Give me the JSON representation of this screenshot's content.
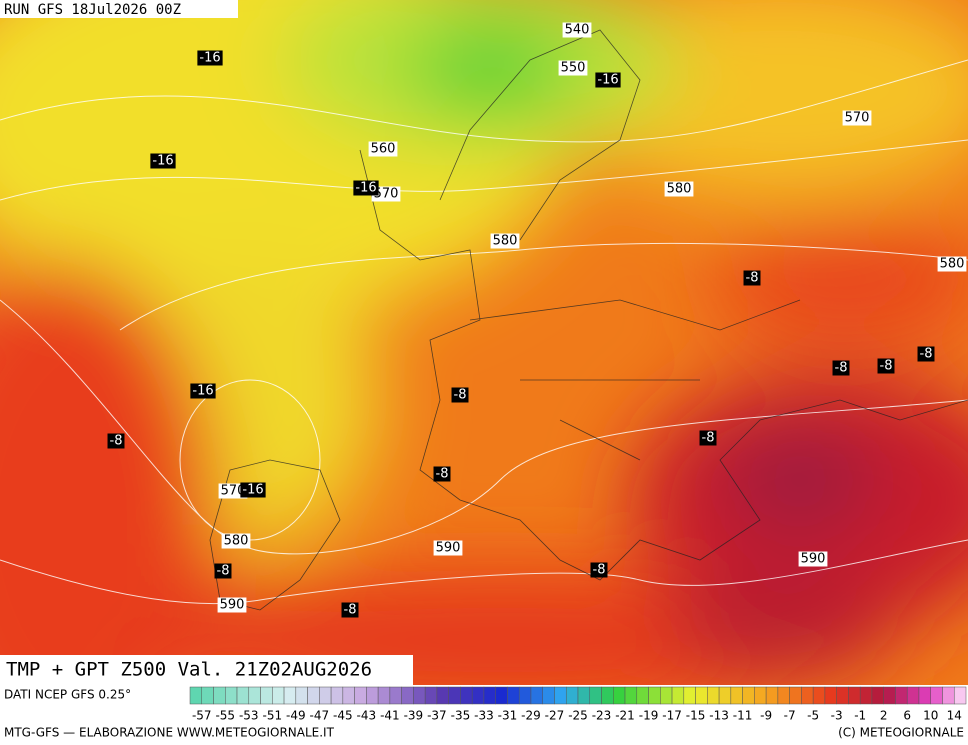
{
  "header": {
    "run": "RUN GFS 18Jul2026 00Z"
  },
  "map": {
    "gpt_labels": [
      "540",
      "550",
      "570",
      "560",
      "570",
      "580",
      "580",
      "580",
      "570",
      "580",
      "590",
      "590",
      "590"
    ],
    "tmp_labels": [
      "-16",
      "-16",
      "-16",
      "-16",
      "-8",
      "-8",
      "-8",
      "-8",
      "-16",
      "-8",
      "-8",
      "-8",
      "-8",
      "-16",
      "-8",
      "-8",
      "-8"
    ]
  },
  "footer": {
    "title": "TMP + GPT Z500 Val. 21Z02AUG2026",
    "source": "DATI NCEP GFS 0.25°",
    "scale_labels": [
      "-57",
      "-55",
      "-53",
      "-51",
      "-49",
      "-47",
      "-45",
      "-43",
      "-41",
      "-39",
      "-37",
      "-35",
      "-33",
      "-31",
      "-29",
      "-27",
      "-25",
      "-23",
      "-21",
      "-19",
      "-17",
      "-15",
      "-13",
      "-11",
      "-9",
      "-7",
      "-5",
      "-3",
      "-1",
      "2",
      "6",
      "10",
      "14"
    ],
    "credit": "MTG-GFS — ELABORAZIONE WWW.METEOGIORNALE.IT",
    "copyright": "(C) METEOGIORNALE"
  }
}
